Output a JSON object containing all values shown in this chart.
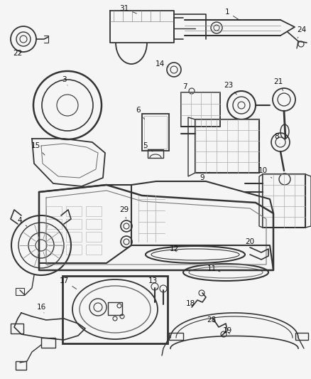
{
  "bg_color": "#f5f5f5",
  "fig_width": 4.38,
  "fig_height": 5.33,
  "dpi": 100,
  "label_fontsize": 7.5,
  "label_color": "#111111",
  "line_color": "#222222",
  "cc": "#333333",
  "lw_main": 1.2,
  "lw_thin": 0.6,
  "lw_grid": 0.4
}
